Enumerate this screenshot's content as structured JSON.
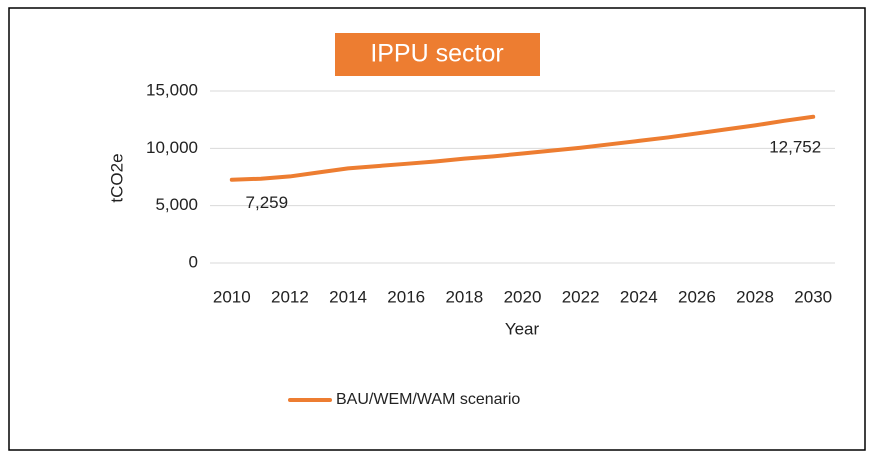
{
  "chart_data": {
    "type": "line",
    "title": "IPPU sector",
    "x_label": "Year",
    "y_label": "tCO2e",
    "x": [
      2010,
      2011,
      2012,
      2013,
      2014,
      2015,
      2016,
      2017,
      2018,
      2019,
      2020,
      2021,
      2022,
      2023,
      2024,
      2025,
      2026,
      2027,
      2028,
      2029,
      2030
    ],
    "series": [
      {
        "name": "BAU/WEM/WAM scenario",
        "color": "#ed7d31",
        "values": [
          7259,
          7350,
          7550,
          7900,
          8250,
          8450,
          8650,
          8850,
          9100,
          9300,
          9550,
          9800,
          10050,
          10350,
          10650,
          10950,
          11300,
          11650,
          12000,
          12400,
          12752
        ],
        "value_labels": [
          "7,259",
          null,
          null,
          null,
          null,
          null,
          null,
          null,
          null,
          null,
          null,
          null,
          null,
          null,
          null,
          null,
          null,
          null,
          null,
          null,
          "12,752"
        ]
      }
    ],
    "xlim": [
      2009.25,
      2030.75
    ],
    "xticks": [
      2010,
      2012,
      2014,
      2016,
      2018,
      2020,
      2022,
      2024,
      2026,
      2028,
      2030
    ],
    "ylim": [
      0,
      15000
    ],
    "yticks": [
      0,
      {
        "value": 5000,
        "label": "5,000"
      },
      {
        "value": 10000,
        "label": "10,000"
      },
      {
        "value": 15000,
        "label": "15,000"
      }
    ],
    "grid": true,
    "legend": "bottom"
  }
}
